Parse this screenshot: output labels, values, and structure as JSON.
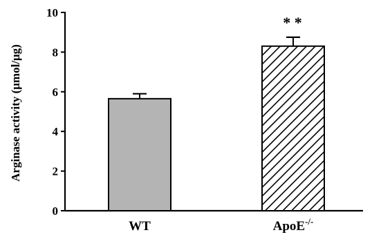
{
  "chart_data": {
    "type": "bar",
    "title": "",
    "xlabel": "",
    "ylabel": "Arginase activity (μmol/μg)",
    "ylim": [
      0,
      10
    ],
    "yticks": [
      0,
      2,
      4,
      6,
      8,
      10
    ],
    "categories": [
      "WT",
      "ApoE"
    ],
    "category_superscripts": [
      "",
      "-/-"
    ],
    "values": [
      5.65,
      8.3
    ],
    "errors": [
      0.25,
      0.45
    ],
    "fills": [
      "solid",
      "hatched"
    ],
    "bar_colors": [
      "#b4b4b4",
      "#ffffff"
    ],
    "annotations": [
      "",
      "* *"
    ],
    "grid": false,
    "legend": "none"
  }
}
